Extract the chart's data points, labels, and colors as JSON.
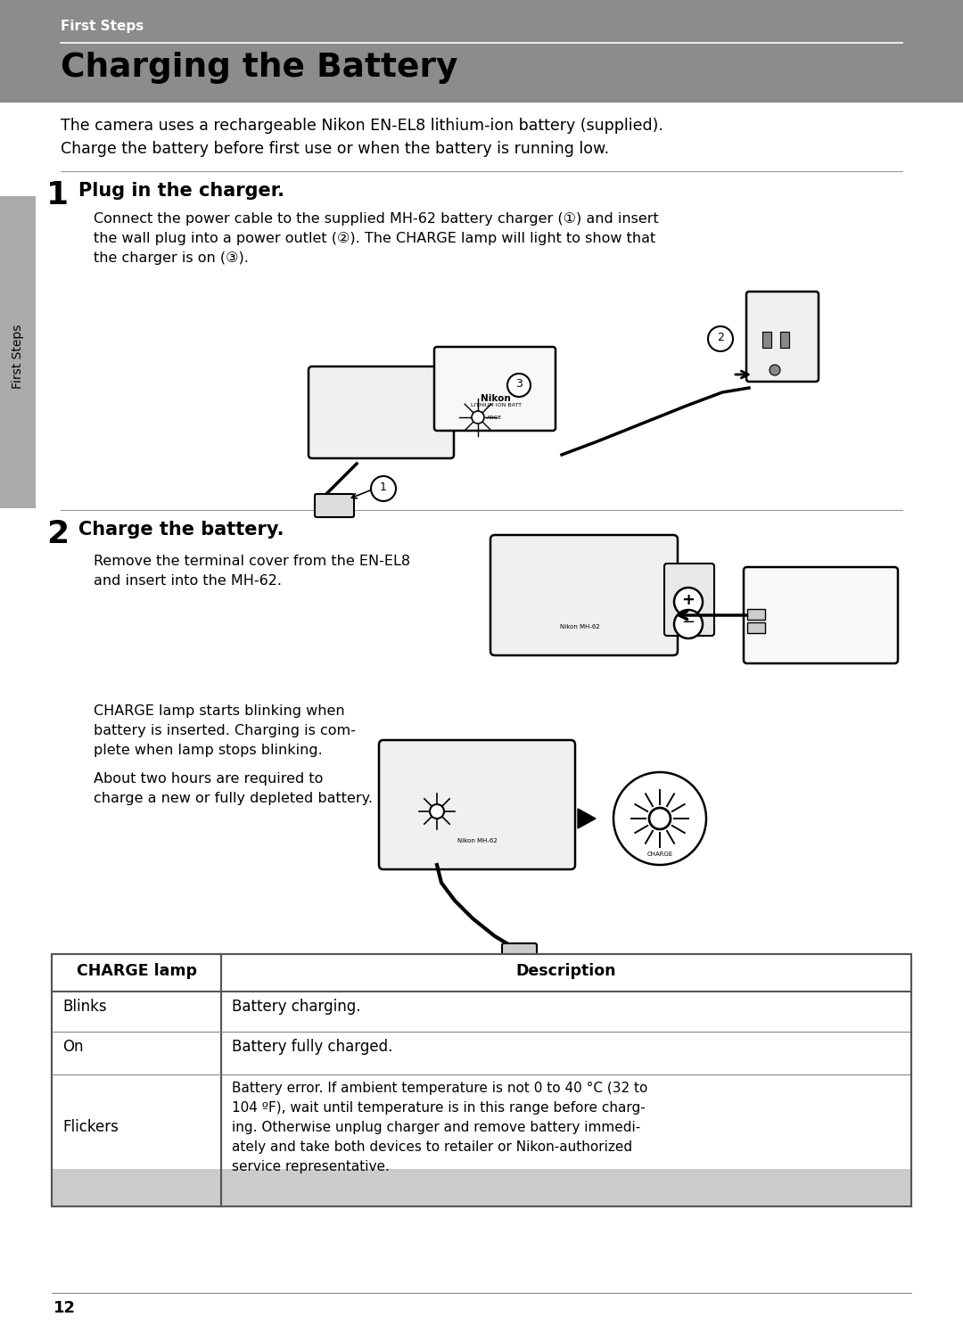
{
  "page_bg": "#ffffff",
  "header_bg": "#8c8c8c",
  "header_text_color": "#ffffff",
  "header_label": "First Steps",
  "title": "Charging the Battery",
  "title_color": "#000000",
  "intro_text_line1": "The camera uses a rechargeable Nikon EN-EL8 lithium-ion battery (supplied).",
  "intro_text_line2": "Charge the battery before first use or when the battery is running low.",
  "step1_num": "1",
  "step1_heading": "Plug in the charger.",
  "step1_body_line1": "Connect the power cable to the supplied MH-62 battery charger (①) and insert",
  "step1_body_line2": "the wall plug into a power outlet (②). The CHARGE lamp will light to show that",
  "step1_body_line3": "the charger is on (③).",
  "step2_num": "2",
  "step2_heading": "Charge the battery.",
  "step2_body1_line1": "Remove the terminal cover from the EN-EL8",
  "step2_body1_line2": "and insert into the MH-62.",
  "step2_body2_line1": "CHARGE lamp starts blinking when",
  "step2_body2_line2": "battery is inserted. Charging is com-",
  "step2_body2_line3": "plete when lamp stops blinking.",
  "step2_body3_line1": "About two hours are required to",
  "step2_body3_line2": "charge a new or fully depleted battery.",
  "sidebar_label": "First Steps",
  "sidebar_bg": "#aaaaaa",
  "table_header_bg": "#cccccc",
  "table_col1_header": "CHARGE lamp",
  "table_col2_header": "Description",
  "table_row1_col1": "Blinks",
  "table_row1_col2": "Battery charging.",
  "table_row2_col1": "On",
  "table_row2_col2": "Battery fully charged.",
  "table_row3_col1": "Flickers",
  "table_row3_col2_line1": "Battery error. If ambient temperature is not 0 to 40 °C (32 to",
  "table_row3_col2_line2": "104 ºF), wait until temperature is in this range before charg-",
  "table_row3_col2_line3": "ing. Otherwise unplug charger and remove battery immedi-",
  "table_row3_col2_line4": "ately and take both devices to retailer or Nikon-authorized",
  "table_row3_col2_line5": "service representative.",
  "page_number": "12",
  "divider_color": "#999999"
}
